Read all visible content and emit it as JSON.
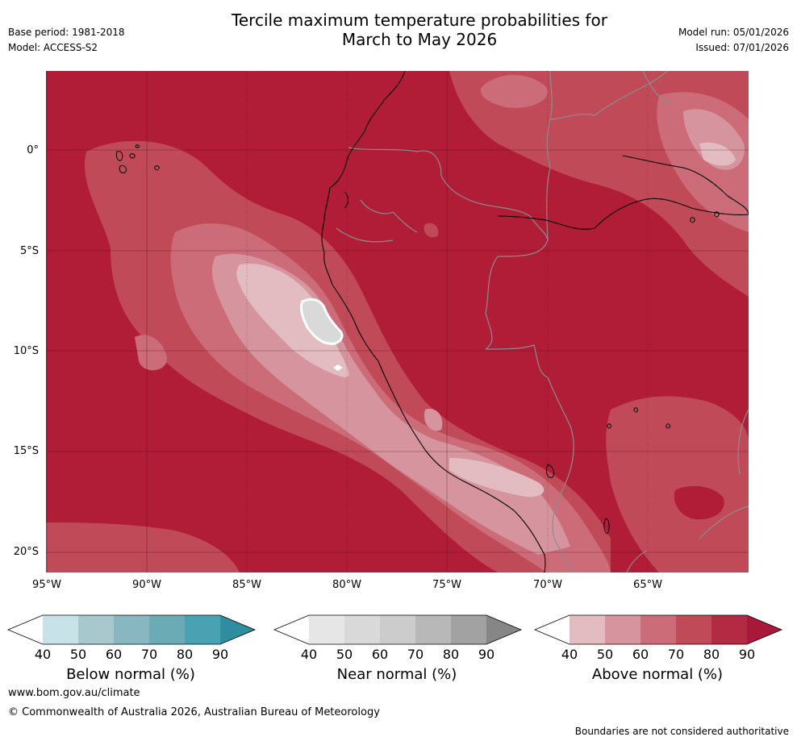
{
  "header": {
    "title_line1": "Tercile maximum temperature probabilities for",
    "title_line2": "March to May 2026",
    "base_period": "Base period: 1981-2018",
    "model": "Model: ACCESS-S2",
    "model_run": "Model run: 05/01/2026",
    "issued": "Issued: 07/01/2026"
  },
  "map": {
    "lat_labels": [
      "0°",
      "5°S",
      "10°S",
      "15°S",
      "20°S"
    ],
    "lon_labels": [
      "95°W",
      "90°W",
      "85°W",
      "80°W",
      "75°W",
      "70°W",
      "65°W"
    ],
    "colors": {
      "ocean_land_high": "#b11c37",
      "band_80": "#c04a58",
      "band_70": "#cb6c78",
      "band_60": "#d6959e",
      "band_50": "#e2bcc1",
      "near_normal": "#d9d9d9"
    }
  },
  "colorbars": [
    {
      "title": "Below normal (%)",
      "ticks": [
        "40",
        "50",
        "60",
        "70",
        "80",
        "90"
      ],
      "colors": [
        "#ffffff",
        "#c8e3e8",
        "#a7c9ce",
        "#88b7c1",
        "#6aabb6",
        "#48a2b1",
        "#2e8d9e"
      ]
    },
    {
      "title": "Near normal (%)",
      "ticks": [
        "40",
        "50",
        "60",
        "70",
        "80",
        "90"
      ],
      "colors": [
        "#ffffff",
        "#e6e6e6",
        "#d9d9d9",
        "#cccccc",
        "#b8b8b8",
        "#a2a2a2",
        "#868686"
      ]
    },
    {
      "title": "Above normal (%)",
      "ticks": [
        "40",
        "50",
        "60",
        "70",
        "80",
        "90"
      ],
      "colors": [
        "#ffffff",
        "#e2bcc1",
        "#d6959e",
        "#cb6c78",
        "#c04a58",
        "#b32b42",
        "#a8183a"
      ]
    }
  ],
  "footer": {
    "website": "www.bom.gov.au/climate",
    "copyright": "© Commonwealth of Australia 2026, Australian Bureau of Meteorology",
    "disclaimer": "Boundaries are not considered authoritative"
  }
}
